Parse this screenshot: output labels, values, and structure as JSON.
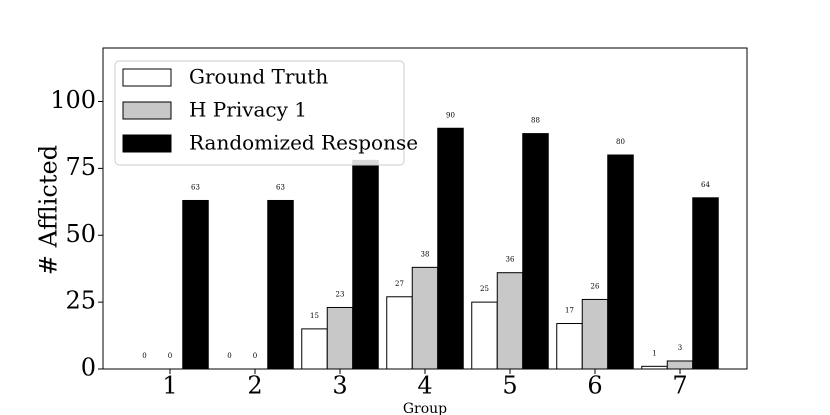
{
  "chart_data": {
    "type": "bar",
    "title": "",
    "xlabel": "Group",
    "ylabel": "# Afflicted",
    "categories": [
      "1",
      "2",
      "3",
      "4",
      "5",
      "6",
      "7"
    ],
    "ylim": [
      0,
      120
    ],
    "yticks": [
      "0",
      "25",
      "50",
      "75",
      "100"
    ],
    "grid": false,
    "legend_position": "top-left",
    "series": [
      {
        "name": "Ground Truth",
        "values": [
          0,
          0,
          15,
          27,
          25,
          17,
          1
        ],
        "labels": [
          "0",
          "0",
          "15",
          "27",
          "25",
          "17",
          "1"
        ],
        "color": "#ffffff"
      },
      {
        "name": "H Privacy 1",
        "values": [
          0,
          0,
          23,
          38,
          36,
          26,
          3
        ],
        "labels": [
          "0",
          "0",
          "23",
          "38",
          "36",
          "26",
          "3"
        ],
        "color": "#c8c8c8"
      },
      {
        "name": "Randomized Response",
        "values": [
          63,
          63,
          78,
          90,
          88,
          80,
          64
        ],
        "labels": [
          "63",
          "63",
          "",
          "90",
          "88",
          "80",
          "64"
        ],
        "color": "#000000"
      }
    ]
  }
}
